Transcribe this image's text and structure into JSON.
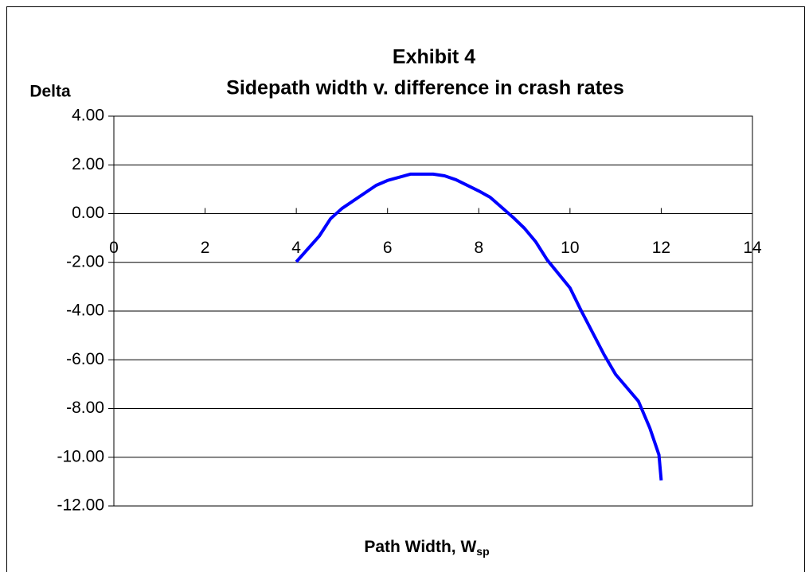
{
  "chart_data": {
    "type": "line",
    "title": "Exhibit 4",
    "subtitle": "Sidepath width v. difference in crash rates",
    "y_label": "Delta",
    "x_label": "Path Width, W",
    "x_label_subscript": "sp",
    "x": [
      4,
      4.5,
      4.75,
      5,
      5.75,
      6,
      6.5,
      7,
      7.25,
      7.5,
      8,
      8.25,
      8.75,
      9,
      9.25,
      9.5,
      10,
      10.25,
      10.75,
      11,
      11.5,
      11.75,
      11.95,
      12
    ],
    "series": [
      {
        "color": "#0000ff",
        "values": [
          -1.98,
          -0.93,
          -0.21,
          0.21,
          1.16,
          1.36,
          1.62,
          1.62,
          1.55,
          1.39,
          0.93,
          0.67,
          -0.15,
          -0.6,
          -1.16,
          -1.9,
          -3.05,
          -4.0,
          -5.8,
          -6.6,
          -7.7,
          -8.8,
          -9.9,
          -10.95
        ]
      }
    ],
    "xlim": [
      0,
      14
    ],
    "xticks": [
      0,
      2,
      4,
      6,
      8,
      10,
      12,
      14
    ],
    "ylim": [
      -12,
      4
    ],
    "yticks": [
      {
        "value": 4,
        "label": "4.00"
      },
      {
        "value": 2,
        "label": "2.00"
      },
      {
        "value": 0,
        "label": "0.00"
      },
      {
        "value": -2,
        "label": "-2.00"
      },
      {
        "value": -4,
        "label": "-4.00"
      },
      {
        "value": -6,
        "label": "-6.00"
      },
      {
        "value": -8,
        "label": "-8.00"
      },
      {
        "value": -10,
        "label": "-10.00"
      },
      {
        "value": -12,
        "label": "-12.00"
      }
    ],
    "grid": true
  }
}
